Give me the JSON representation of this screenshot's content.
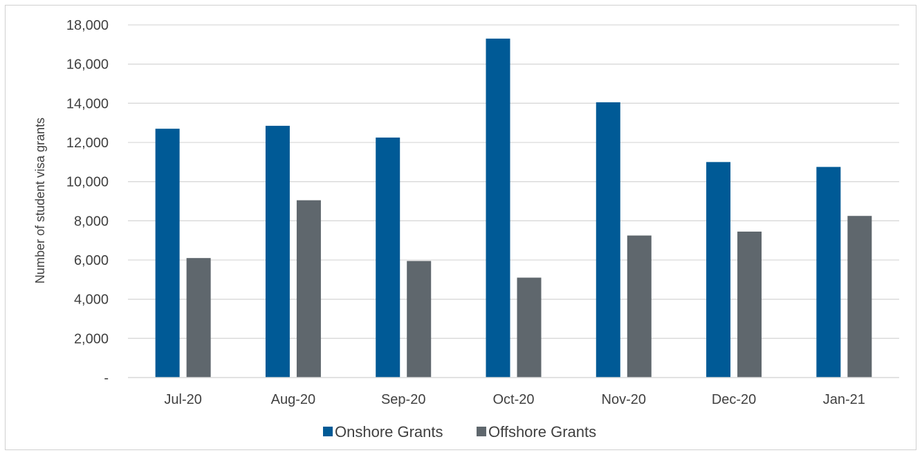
{
  "chart_data": {
    "type": "bar",
    "title": "",
    "xlabel": "",
    "ylabel": "Number of student visa grants",
    "ylim": [
      0,
      18000
    ],
    "yticks": [
      0,
      2000,
      4000,
      6000,
      8000,
      10000,
      12000,
      14000,
      16000,
      18000
    ],
    "ytick_labels": [
      "-",
      "2,000",
      "4,000",
      "6,000",
      "8,000",
      "10,000",
      "12,000",
      "14,000",
      "16,000",
      "18,000"
    ],
    "categories": [
      "Jul-20",
      "Aug-20",
      "Sep-20",
      "Oct-20",
      "Nov-20",
      "Dec-20",
      "Jan-21"
    ],
    "series": [
      {
        "name": "Onshore Grants",
        "color": "#005a96",
        "values": [
          12700,
          12850,
          12250,
          17300,
          14050,
          11000,
          10750
        ]
      },
      {
        "name": "Offshore Grants",
        "color": "#5f676d",
        "values": [
          6100,
          9050,
          5950,
          5100,
          7250,
          7450,
          8250
        ]
      }
    ],
    "grid": true,
    "legend": "bottom-center"
  }
}
